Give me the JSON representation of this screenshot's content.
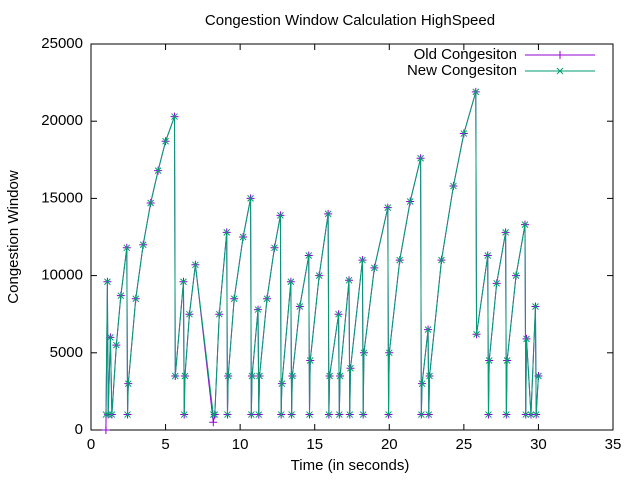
{
  "chart_data": {
    "type": "line",
    "title": "Congestion Window Calculation HighSpeed",
    "x_label": "Time (in seconds)",
    "y_label": "Congestion Window",
    "x": [
      1.0,
      1.1,
      1.15,
      1.3,
      1.4,
      1.7,
      2.0,
      2.4,
      2.45,
      2.5,
      3.0,
      3.5,
      4.0,
      4.5,
      5.0,
      5.6,
      5.65,
      6.2,
      6.25,
      6.3,
      6.6,
      7.0,
      8.2,
      8.3,
      8.6,
      9.1,
      9.15,
      9.2,
      9.6,
      10.2,
      10.7,
      10.75,
      10.8,
      11.2,
      11.25,
      11.3,
      11.8,
      12.3,
      12.7,
      12.75,
      12.8,
      13.4,
      13.45,
      13.5,
      14.0,
      14.6,
      14.65,
      14.7,
      15.3,
      15.9,
      15.95,
      16.0,
      16.6,
      16.65,
      16.7,
      17.3,
      17.35,
      17.4,
      18.2,
      18.25,
      18.3,
      19.0,
      19.9,
      19.95,
      20.0,
      20.7,
      21.4,
      22.1,
      22.15,
      22.2,
      22.6,
      22.65,
      22.7,
      23.5,
      24.3,
      25.0,
      25.8,
      25.85,
      26.6,
      26.65,
      26.7,
      27.2,
      27.8,
      27.85,
      27.9,
      28.5,
      29.1,
      29.15,
      29.2,
      29.5,
      29.8,
      29.85,
      30.0
    ],
    "series": [
      {
        "name": "Old Congesiton",
        "color": "#9400d3",
        "marker": "plus",
        "values": [
          0,
          9600,
          1000,
          6000,
          1000,
          5500,
          8700,
          11800,
          1000,
          3000,
          8500,
          12000,
          14700,
          16800,
          18700,
          20300,
          3500,
          9600,
          1000,
          3500,
          7500,
          10700,
          500,
          1000,
          7500,
          12800,
          1000,
          3500,
          8500,
          12500,
          15000,
          1000,
          3500,
          7800,
          1000,
          3500,
          8500,
          11800,
          13900,
          1000,
          3000,
          9600,
          1000,
          3500,
          8000,
          11300,
          1000,
          4500,
          10000,
          14000,
          1000,
          3500,
          7500,
          1000,
          3500,
          9700,
          1000,
          4000,
          11000,
          1000,
          5000,
          10500,
          14400,
          1000,
          5000,
          11000,
          14800,
          17600,
          1000,
          3000,
          6500,
          1000,
          3500,
          11000,
          15800,
          19200,
          21900,
          6200,
          11300,
          1000,
          4500,
          9500,
          12800,
          1000,
          4500,
          10000,
          13300,
          1000,
          5900,
          1000,
          8000,
          1000,
          3500
        ]
      },
      {
        "name": "New Congesiton",
        "color": "#009e73",
        "marker": "cross",
        "values": [
          1000,
          9600,
          1000,
          6000,
          1000,
          5500,
          8700,
          11800,
          1000,
          3000,
          8500,
          12000,
          14700,
          16800,
          18700,
          20300,
          3500,
          9600,
          1000,
          3500,
          7500,
          10700,
          1000,
          1000,
          7500,
          12800,
          1000,
          3500,
          8500,
          12500,
          15000,
          1000,
          3500,
          7800,
          1000,
          3500,
          8500,
          11800,
          13900,
          1000,
          3000,
          9600,
          1000,
          3500,
          8000,
          11300,
          1000,
          4500,
          10000,
          14000,
          1000,
          3500,
          7500,
          1000,
          3500,
          9700,
          1000,
          4000,
          11000,
          1000,
          5000,
          10500,
          14400,
          1000,
          5000,
          11000,
          14800,
          17600,
          1000,
          3000,
          6500,
          1000,
          3500,
          11000,
          15800,
          19200,
          21900,
          6200,
          11300,
          1000,
          4500,
          9500,
          12800,
          1000,
          4500,
          10000,
          13300,
          1000,
          5900,
          1000,
          8000,
          1000,
          3500
        ]
      }
    ],
    "xlim": [
      0,
      35
    ],
    "xticks": [
      0,
      5,
      10,
      15,
      20,
      25,
      30,
      35
    ],
    "ylim": [
      0,
      25000
    ],
    "yticks": [
      0,
      5000,
      10000,
      15000,
      20000,
      25000
    ],
    "legend": "top-right"
  }
}
